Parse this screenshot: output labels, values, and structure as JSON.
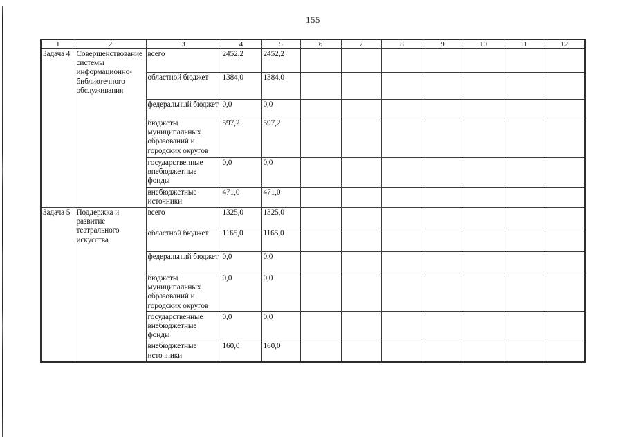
{
  "page": {
    "number": "155"
  },
  "table": {
    "header_cols": [
      "1",
      "2",
      "3",
      "4",
      "5",
      "6",
      "7",
      "8",
      "9",
      "10",
      "11",
      "12"
    ],
    "groups": [
      {
        "task": "Задача 4",
        "description": "Совершенствование системы информационно-библиотечного обслуживания",
        "rows": [
          {
            "label": "всего",
            "col4": "2452,2",
            "col5": "2452,2"
          },
          {
            "label": "областной бюджет",
            "col4": "1384,0",
            "col5": "1384,0"
          },
          {
            "label": "федеральный бюджет",
            "col4": "0,0",
            "col5": "0,0"
          },
          {
            "label": "бюджеты муниципальных образований и городских округов",
            "col4": "597,2",
            "col5": "597,2"
          },
          {
            "label": "государственные внебюджетные фонды",
            "col4": "0,0",
            "col5": "0,0"
          },
          {
            "label": "внебюджетные источники",
            "col4": "471,0",
            "col5": "471,0"
          }
        ]
      },
      {
        "task": "Задача 5",
        "description": "Поддержка и развитие театрального искусства",
        "rows": [
          {
            "label": "всего",
            "col4": "1325,0",
            "col5": "1325,0"
          },
          {
            "label": "областной бюджет",
            "col4": "1165,0",
            "col5": "1165,0"
          },
          {
            "label": "федеральный бюджет",
            "col4": "0,0",
            "col5": "0,0"
          },
          {
            "label": "бюджеты муниципальных образований и городских округов",
            "col4": "0,0",
            "col5": "0,0"
          },
          {
            "label": "государственные внебюджетные фонды",
            "col4": "0,0",
            "col5": "0,0"
          },
          {
            "label": "внебюджетные источники",
            "col4": "160,0",
            "col5": "160,0"
          }
        ]
      }
    ]
  }
}
